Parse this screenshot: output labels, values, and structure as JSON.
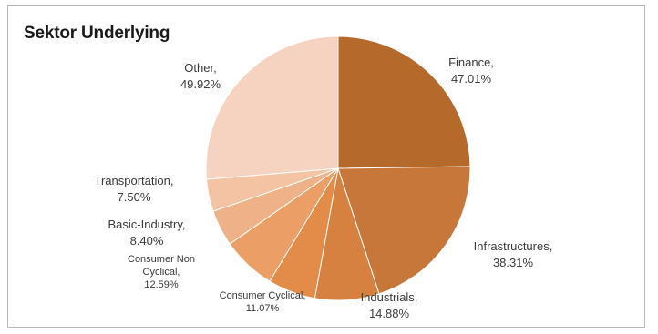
{
  "chart_data": {
    "type": "pie",
    "title": "Sektor Underlying",
    "slices": [
      {
        "name": "Finance",
        "label": "Finance,",
        "value": 47.01,
        "value_label": "47.01%",
        "color": "#b56a2c"
      },
      {
        "name": "Infrastructures",
        "label": "Infrastructures,",
        "value": 38.31,
        "value_label": "38.31%",
        "color": "#c8773a"
      },
      {
        "name": "Industrials",
        "label": "Industrials,",
        "value": 14.88,
        "value_label": "14.88%",
        "color": "#d6813f"
      },
      {
        "name": "Consumer Cyclical",
        "label": "Consumer Cyclical,",
        "value": 11.07,
        "value_label": "11.07%",
        "color": "#e38c4a"
      },
      {
        "name": "Consumer Non Cyclical",
        "label": "Consumer Non",
        "label2": "Cyclical,",
        "value": 12.59,
        "value_label": "12.59%",
        "color": "#eb9e65"
      },
      {
        "name": "Basic-Industry",
        "label": "Basic-Industry,",
        "value": 8.4,
        "value_label": "8.40%",
        "color": "#efb187"
      },
      {
        "name": "Transportation",
        "label": "Transportation,",
        "value": 7.5,
        "value_label": "7.50%",
        "color": "#f3c3a3"
      },
      {
        "name": "Other",
        "label": "Other,",
        "value": 49.92,
        "value_label": "49.92%",
        "color": "#f5d3c0"
      }
    ]
  }
}
